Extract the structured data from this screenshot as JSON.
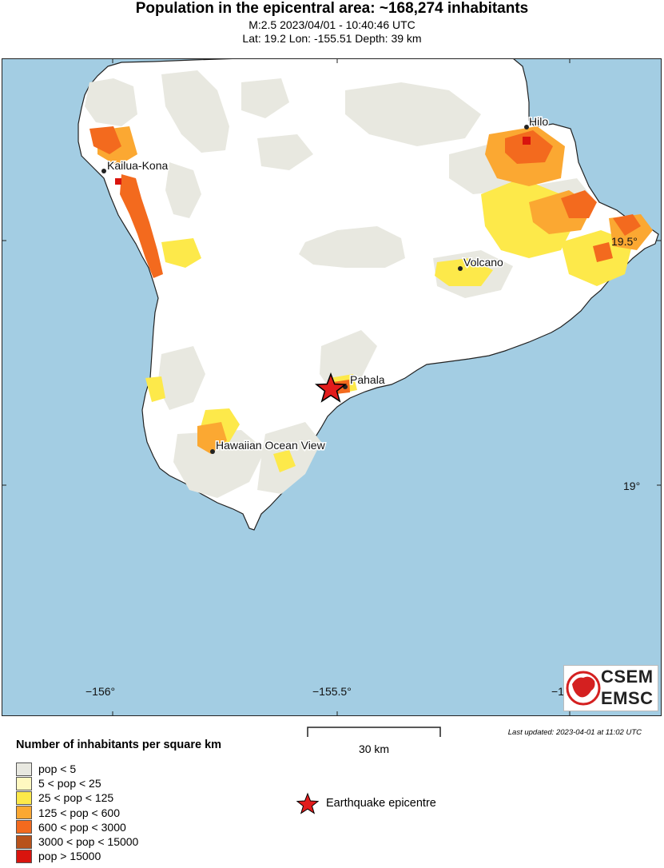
{
  "header": {
    "title": "Population in the epicentral area: ~168,274 inhabitants",
    "line1": "M:2.5 2023/04/01 - 10:40:46 UTC",
    "line2": "Lat: 19.2 Lon: -155.51 Depth: 39 km"
  },
  "map": {
    "ocean_color": "#a3cde3",
    "land_color": "#ffffff",
    "places": [
      {
        "name": "Kailua-Kona"
      },
      {
        "name": "Hilo"
      },
      {
        "name": "Volcano"
      },
      {
        "name": "Pahala"
      },
      {
        "name": "Hawaiian Ocean View"
      }
    ],
    "lon_labels": [
      "−156°",
      "−155.5°",
      "−1"
    ],
    "lat_labels": [
      "19.5°",
      "19°"
    ],
    "epicenter": {
      "lat": 19.2,
      "lon": -155.51,
      "icon": "red-star-icon"
    }
  },
  "scale_bar": {
    "label": "30 km"
  },
  "last_updated": "Last updated: 2023-04-01 at 11:02 UTC",
  "legend": {
    "title": "Number of inhabitants per square km",
    "items": [
      {
        "label": "pop < 5",
        "color": "#e8e8e0"
      },
      {
        "label": "5 < pop < 25",
        "color": "#fff8c0"
      },
      {
        "label": "25 < pop < 125",
        "color": "#fde94a"
      },
      {
        "label": "125 < pop < 600",
        "color": "#fba832"
      },
      {
        "label": "600 < pop < 3000",
        "color": "#f36a1e"
      },
      {
        "label": "3000 < pop < 15000",
        "color": "#b8521b"
      },
      {
        "label": "pop > 15000",
        "color": "#d9140e"
      }
    ],
    "epicentre_label": "Earthquake epicentre"
  },
  "logo": {
    "line1": "CSEM",
    "line2": "EMSC"
  }
}
